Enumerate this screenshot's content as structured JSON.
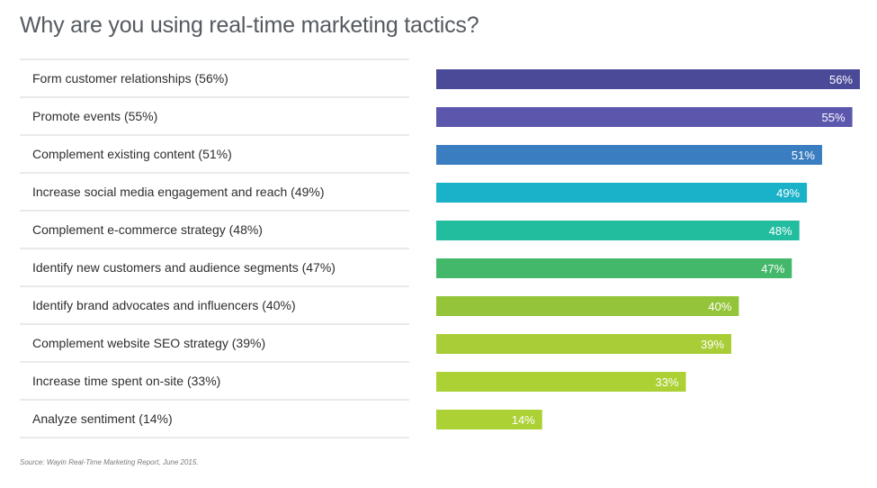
{
  "chart_data": {
    "type": "bar",
    "orientation": "horizontal",
    "title": "Why are you using real-time marketing tactics?",
    "categories": [
      "Form customer relationships (56%)",
      "Promote events (55%)",
      "Complement existing content (51%)",
      "Increase social media engagement and reach (49%)",
      "Complement e-commerce strategy (48%)",
      "Identify new customers and audience segments (47%)",
      "Identify brand advocates and influencers (40%)",
      "Complement website SEO strategy (39%)",
      "Increase time spent on-site (33%)",
      "Analyze sentiment (14%)"
    ],
    "values": [
      56,
      55,
      51,
      49,
      48,
      47,
      40,
      39,
      33,
      14
    ],
    "value_labels": [
      "56%",
      "55%",
      "51%",
      "49%",
      "48%",
      "47%",
      "40%",
      "39%",
      "33%",
      "14%"
    ],
    "colors": [
      "#4a4a99",
      "#5b57ad",
      "#3a7dc0",
      "#1ab2c9",
      "#22bc9f",
      "#43b86a",
      "#93c43a",
      "#a8cd36",
      "#acd135",
      "#acd135"
    ],
    "xlim": [
      0,
      56
    ],
    "grid": false,
    "legend": "none"
  },
  "source": "Source: Wayin Real-Time Marketing Report, June 2015."
}
